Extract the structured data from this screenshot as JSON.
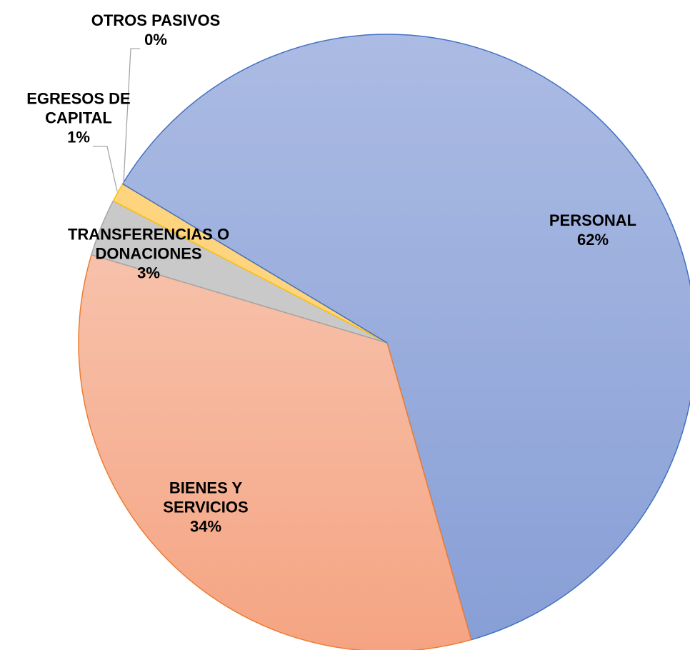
{
  "chart_data": {
    "type": "pie",
    "categories": [
      "PERSONAL",
      "BIENES Y SERVICIOS",
      "TRANSFERENCIAS O DONACIONES",
      "EGRESOS DE CAPITAL",
      "OTROS PASIVOS"
    ],
    "values": [
      62,
      34,
      3,
      1,
      0
    ],
    "value_labels": [
      "62%",
      "34%",
      "3%",
      "1%",
      "0%"
    ],
    "colors": [
      "#9cafdd",
      "#f5b193",
      "#c9c9c9",
      "#ffd47e",
      "#5b9bd5"
    ]
  }
}
